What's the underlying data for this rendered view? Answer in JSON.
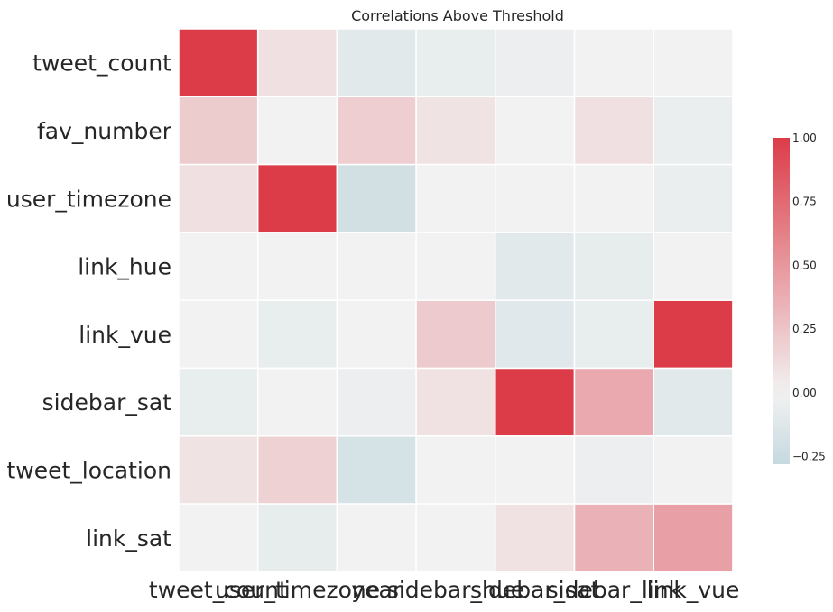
{
  "chart_data": {
    "type": "heatmap",
    "title": "Correlations Above Threshold",
    "rows": [
      "tweet_count",
      "fav_number",
      "user_timezone",
      "link_hue",
      "link_vue",
      "sidebar_sat",
      "tweet_location",
      "link_sat"
    ],
    "columns": [
      "tweet_count",
      "user_timezone",
      "year",
      "sidebar_hue",
      "sidebar_sat",
      "sidebar_link",
      "link_vue"
    ],
    "x_tick_labels": [
      "tweet_count",
      "user_timezone",
      "year",
      "sidebar_hue",
      "sidebar_sat",
      "sidebar_link",
      "link_vue"
    ],
    "values": [
      [
        1.0,
        0.1,
        -0.1,
        -0.06,
        -0.04,
        0.0,
        0.0
      ],
      [
        0.21,
        0.0,
        0.2,
        0.08,
        0.0,
        0.1,
        -0.05
      ],
      [
        0.1,
        1.0,
        -0.2,
        0.0,
        0.0,
        0.0,
        -0.05
      ],
      [
        0.0,
        0.0,
        0.0,
        0.0,
        -0.1,
        -0.07,
        0.0
      ],
      [
        0.0,
        -0.06,
        0.0,
        0.22,
        -0.11,
        -0.06,
        1.0
      ],
      [
        -0.06,
        0.0,
        -0.04,
        0.09,
        1.0,
        0.4,
        -0.1
      ],
      [
        0.08,
        0.18,
        -0.18,
        0.0,
        0.0,
        -0.04,
        0.0
      ],
      [
        0.0,
        -0.07,
        0.0,
        0.0,
        0.09,
        0.35,
        0.45
      ]
    ],
    "colorbar": {
      "min": -0.28,
      "max": 1.0,
      "ticks": [
        1.0,
        0.75,
        0.5,
        0.25,
        0.0,
        -0.25
      ],
      "tick_labels": [
        "1.00",
        "0.75",
        "0.50",
        "0.25",
        "0.00",
        "−0.25"
      ],
      "neutral_color": "#f2f2f2",
      "positive_color": "#dc3c48",
      "negative_color": "#c5d9df"
    },
    "grid": true,
    "legend": "colorbar-right"
  }
}
